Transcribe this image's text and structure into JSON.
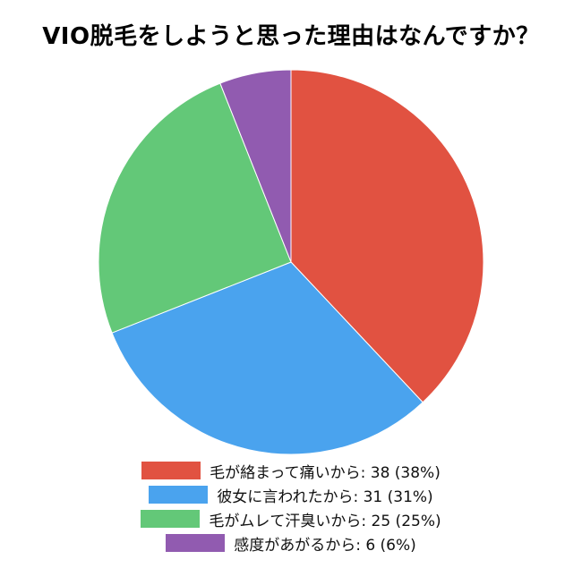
{
  "chart_data": {
    "type": "pie",
    "title": "VIO脱毛をしようと思った理由はなんですか？",
    "slices": [
      {
        "label": "毛が絡まって痛いから",
        "value": 38,
        "percent": 38,
        "legend_text": "毛が絡まって痛いから: 38 (38%)",
        "color": "#e15241"
      },
      {
        "label": "彼女に言われたから",
        "value": 31,
        "percent": 31,
        "legend_text": "彼女に言われたから: 31 (31%)",
        "color": "#4aa3ee"
      },
      {
        "label": "毛がムレて汗臭いから",
        "value": 25,
        "percent": 25,
        "legend_text": "毛がムレて汗臭いから: 25 (25%)",
        "color": "#63c878"
      },
      {
        "label": "感度があがるから",
        "value": 6,
        "percent": 6,
        "legend_text": "感度があがるから: 6 (6%)",
        "color": "#915bb0"
      }
    ],
    "start_angle": "12 o'clock",
    "direction": "clockwise",
    "legend_position": "bottom-center"
  }
}
